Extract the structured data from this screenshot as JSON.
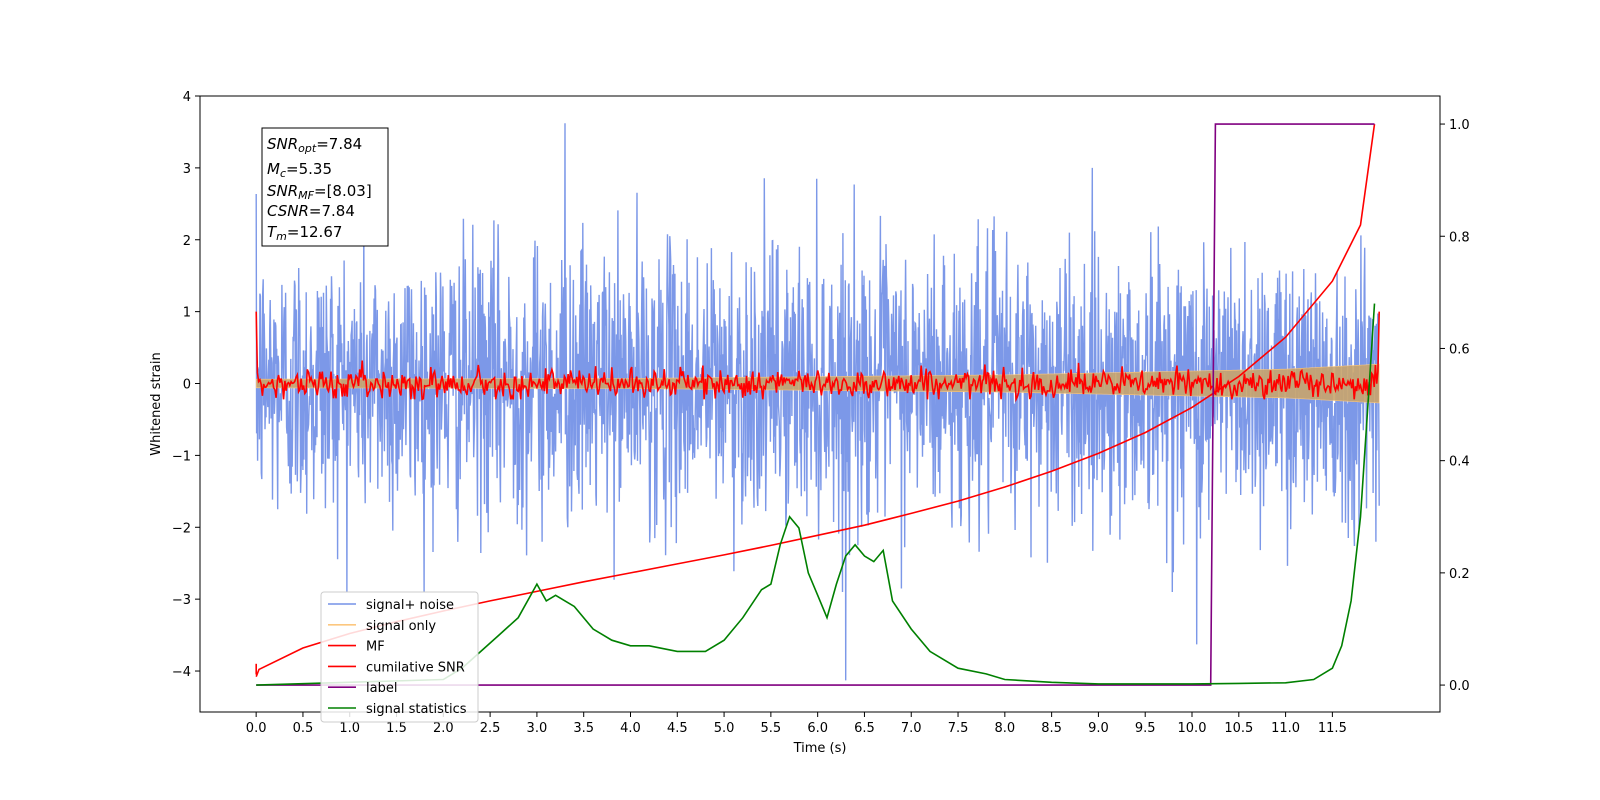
{
  "chart_data": {
    "type": "line",
    "xlabel": "Time (s)",
    "ylabel": "Whitened strain",
    "x_range": [
      -0.6,
      12.65
    ],
    "y_left_range": [
      -4.57,
      4.0
    ],
    "y_right_range": [
      -0.048,
      1.05
    ],
    "x_ticks": [
      "0.0",
      "0.5",
      "1.0",
      "1.5",
      "2.0",
      "2.5",
      "3.0",
      "3.5",
      "4.0",
      "4.5",
      "5.0",
      "5.5",
      "6.0",
      "6.5",
      "7.0",
      "7.5",
      "8.0",
      "8.5",
      "9.0",
      "9.5",
      "10.0",
      "10.5",
      "11.0",
      "11.5"
    ],
    "y_left_ticks": [
      "4",
      "3",
      "2",
      "1",
      "0",
      "−1",
      "−2",
      "−3",
      "−4"
    ],
    "y_right_ticks": [
      "1.0",
      "0.8",
      "0.6",
      "0.4",
      "0.2",
      "0.0"
    ],
    "annotations": {
      "snr_opt": {
        "label": "SNR",
        "sub": "opt",
        "value": "=7.84"
      },
      "mc": {
        "label": "M",
        "sub": "c",
        "value": "=5.35"
      },
      "snr_mf": {
        "label": "SNR",
        "sub": "MF",
        "value": "=[8.03]"
      },
      "csnr": {
        "label": "CSNR",
        "value": "=7.84"
      },
      "tm": {
        "label": "T",
        "sub": "m",
        "value": "=12.67"
      }
    },
    "legend": {
      "placement": "lower-left",
      "entries": [
        {
          "label": "signal+ noise",
          "color": "#7592e7"
        },
        {
          "label": "signal only",
          "color": "#fcc77f"
        },
        {
          "label": "MF",
          "color": "#ff0000"
        },
        {
          "label": "cumilative SNR",
          "color": "#ff0000"
        },
        {
          "label": "label",
          "color": "#800080"
        },
        {
          "label": "signal statistics",
          "color": "#008000"
        }
      ]
    },
    "series": [
      {
        "name": "signal+ noise",
        "axis": "left",
        "kind": "noise",
        "amplitude_std": 1.0,
        "x_start": 0.0,
        "x_end": 12.0,
        "peaks": [
          [
            3.3,
            3.62
          ],
          [
            6.3,
            -4.13
          ],
          [
            10.05,
            -3.63
          ]
        ]
      },
      {
        "name": "signal only",
        "axis": "left",
        "kind": "chirp_envelope",
        "envelope": [
          [
            0.0,
            0.06
          ],
          [
            4.0,
            0.07
          ],
          [
            8.0,
            0.12
          ],
          [
            11.0,
            0.2
          ],
          [
            12.0,
            0.27
          ]
        ]
      },
      {
        "name": "MF",
        "axis": "left",
        "kind": "noisy",
        "base": 0.0,
        "amplitude_std": 0.1,
        "x_start": 0.0,
        "x_end": 12.0,
        "start_value": 1.0,
        "end_value": 1.0
      },
      {
        "name": "cumilative SNR",
        "axis": "right",
        "x": [
          0.0,
          0.03,
          0.5,
          1.0,
          1.5,
          2.0,
          2.5,
          3.0,
          3.5,
          4.0,
          4.5,
          5.0,
          5.5,
          6.0,
          6.5,
          7.0,
          7.5,
          8.0,
          8.5,
          9.0,
          9.5,
          10.0,
          10.5,
          11.0,
          11.5,
          11.8,
          11.95
        ],
        "y": [
          0.015,
          0.028,
          0.066,
          0.092,
          0.113,
          0.132,
          0.15,
          0.167,
          0.184,
          0.2,
          0.216,
          0.232,
          0.249,
          0.267,
          0.285,
          0.306,
          0.328,
          0.353,
          0.381,
          0.413,
          0.45,
          0.495,
          0.55,
          0.62,
          0.72,
          0.82,
          1.0
        ]
      },
      {
        "name": "label",
        "axis": "right",
        "x": [
          0.0,
          10.2,
          10.25,
          11.95
        ],
        "y": [
          0.0,
          0.0,
          1.0,
          1.0
        ]
      },
      {
        "name": "signal statistics",
        "axis": "right",
        "x": [
          0.0,
          2.0,
          2.2,
          2.4,
          2.6,
          2.8,
          3.0,
          3.1,
          3.2,
          3.3,
          3.4,
          3.6,
          3.8,
          4.0,
          4.2,
          4.5,
          4.8,
          5.0,
          5.2,
          5.4,
          5.5,
          5.6,
          5.7,
          5.8,
          5.9,
          6.0,
          6.1,
          6.2,
          6.3,
          6.4,
          6.5,
          6.6,
          6.7,
          6.8,
          7.0,
          7.2,
          7.5,
          7.8,
          8.0,
          8.5,
          9.0,
          9.5,
          10.0,
          10.5,
          11.0,
          11.3,
          11.5,
          11.6,
          11.7,
          11.8,
          11.9,
          11.95
        ],
        "y": [
          0.0,
          0.01,
          0.03,
          0.06,
          0.09,
          0.12,
          0.18,
          0.15,
          0.16,
          0.15,
          0.14,
          0.1,
          0.08,
          0.07,
          0.07,
          0.06,
          0.06,
          0.08,
          0.12,
          0.17,
          0.18,
          0.25,
          0.3,
          0.28,
          0.2,
          0.16,
          0.12,
          0.18,
          0.23,
          0.25,
          0.23,
          0.22,
          0.24,
          0.15,
          0.1,
          0.06,
          0.03,
          0.02,
          0.01,
          0.005,
          0.002,
          0.002,
          0.002,
          0.003,
          0.004,
          0.01,
          0.03,
          0.07,
          0.15,
          0.3,
          0.55,
          0.68
        ]
      }
    ]
  }
}
